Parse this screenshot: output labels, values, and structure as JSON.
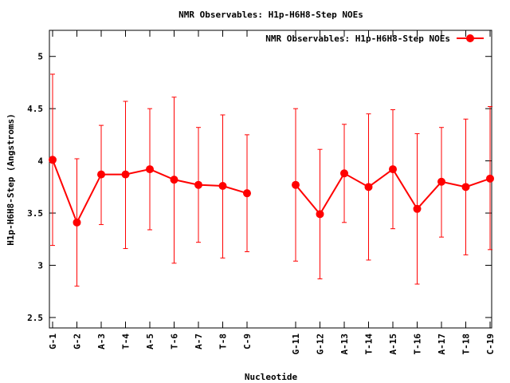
{
  "chart_data": {
    "type": "line",
    "title": "NMR Observables: H1p-H6H8-Step NOEs",
    "xlabel": "Nucleotide",
    "ylabel": "H1p-H6H8-Step (Angstroms)",
    "ylim": [
      2.4,
      5.25
    ],
    "yticks": [
      "2.5",
      "3",
      "3.5",
      "4",
      "4.5",
      "5"
    ],
    "grid": false,
    "legend_position": "top-right",
    "series": [
      {
        "name": "NMR Observables: H1p-H6H8-Step NOEs",
        "color": "#ff0000",
        "marker": "circle",
        "error_bars": true,
        "points": [
          {
            "label": "G-1",
            "idx": 1,
            "y": 4.01,
            "lo": 3.19,
            "hi": 4.83
          },
          {
            "label": "G-2",
            "idx": 2,
            "y": 3.41,
            "lo": 2.8,
            "hi": 4.02
          },
          {
            "label": "A-3",
            "idx": 3,
            "y": 3.87,
            "lo": 3.39,
            "hi": 4.34
          },
          {
            "label": "T-4",
            "idx": 4,
            "y": 3.87,
            "lo": 3.16,
            "hi": 4.57
          },
          {
            "label": "A-5",
            "idx": 5,
            "y": 3.92,
            "lo": 3.34,
            "hi": 4.5
          },
          {
            "label": "T-6",
            "idx": 6,
            "y": 3.82,
            "lo": 3.02,
            "hi": 4.61
          },
          {
            "label": "A-7",
            "idx": 7,
            "y": 3.77,
            "lo": 3.22,
            "hi": 4.32
          },
          {
            "label": "T-8",
            "idx": 8,
            "y": 3.76,
            "lo": 3.07,
            "hi": 4.44
          },
          {
            "label": "C-9",
            "idx": 9,
            "y": 3.69,
            "lo": 3.13,
            "hi": 4.25
          },
          {
            "label": "G-11",
            "idx": 11,
            "y": 3.77,
            "lo": 3.04,
            "hi": 4.5
          },
          {
            "label": "G-12",
            "idx": 12,
            "y": 3.49,
            "lo": 2.87,
            "hi": 4.11
          },
          {
            "label": "A-13",
            "idx": 13,
            "y": 3.88,
            "lo": 3.41,
            "hi": 4.35
          },
          {
            "label": "T-14",
            "idx": 14,
            "y": 3.75,
            "lo": 3.05,
            "hi": 4.45
          },
          {
            "label": "A-15",
            "idx": 15,
            "y": 3.92,
            "lo": 3.35,
            "hi": 4.49
          },
          {
            "label": "T-16",
            "idx": 16,
            "y": 3.54,
            "lo": 2.82,
            "hi": 4.26
          },
          {
            "label": "A-17",
            "idx": 17,
            "y": 3.8,
            "lo": 3.27,
            "hi": 4.32
          },
          {
            "label": "T-18",
            "idx": 18,
            "y": 3.75,
            "lo": 3.1,
            "hi": 4.4
          },
          {
            "label": "C-19",
            "idx": 19,
            "y": 3.83,
            "lo": 3.15,
            "hi": 4.52
          }
        ]
      }
    ]
  }
}
